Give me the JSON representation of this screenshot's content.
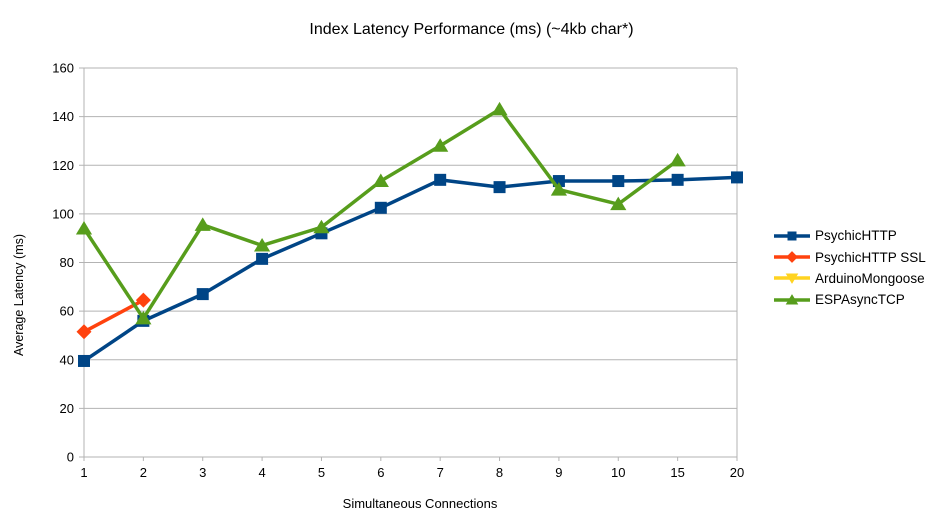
{
  "chart_data": {
    "type": "line",
    "title": "Index Latency Performance (ms) (~4kb char*)",
    "xlabel": "Simultaneous Connections",
    "ylabel": "Average Latency (ms)",
    "categories": [
      "1",
      "2",
      "3",
      "4",
      "5",
      "6",
      "7",
      "8",
      "9",
      "10",
      "15",
      "20"
    ],
    "ylim": [
      0,
      160
    ],
    "yticks": [
      0,
      20,
      40,
      60,
      80,
      100,
      120,
      140,
      160
    ],
    "grid": "horizontal-only",
    "legend_position": "right",
    "colors": {
      "grid": "#b3b3b3",
      "axis": "#b3b3b3",
      "text": "#000000",
      "background": "#ffffff"
    },
    "series": [
      {
        "name": "PsychicHTTP",
        "color": "#004586",
        "marker": "square",
        "values": [
          39.5,
          56,
          67,
          81.5,
          92,
          102.5,
          114,
          111,
          113.5,
          113.5,
          114,
          115
        ]
      },
      {
        "name": "PsychicHTTP SSL",
        "color": "#ff420e",
        "marker": "diamond",
        "values": [
          51.5,
          64.5,
          null,
          null,
          null,
          null,
          null,
          null,
          null,
          null,
          null,
          null
        ]
      },
      {
        "name": "ArduinoMongoose",
        "color": "#ffd320",
        "marker": "triangle-down",
        "values": [
          null,
          null,
          null,
          null,
          null,
          null,
          null,
          null,
          null,
          null,
          null,
          null
        ]
      },
      {
        "name": "ESPAsyncTCP",
        "color": "#579d1c",
        "marker": "triangle-up",
        "values": [
          94,
          57,
          95.5,
          87,
          94.5,
          113.5,
          128,
          143,
          110,
          104,
          122,
          null
        ]
      }
    ]
  }
}
